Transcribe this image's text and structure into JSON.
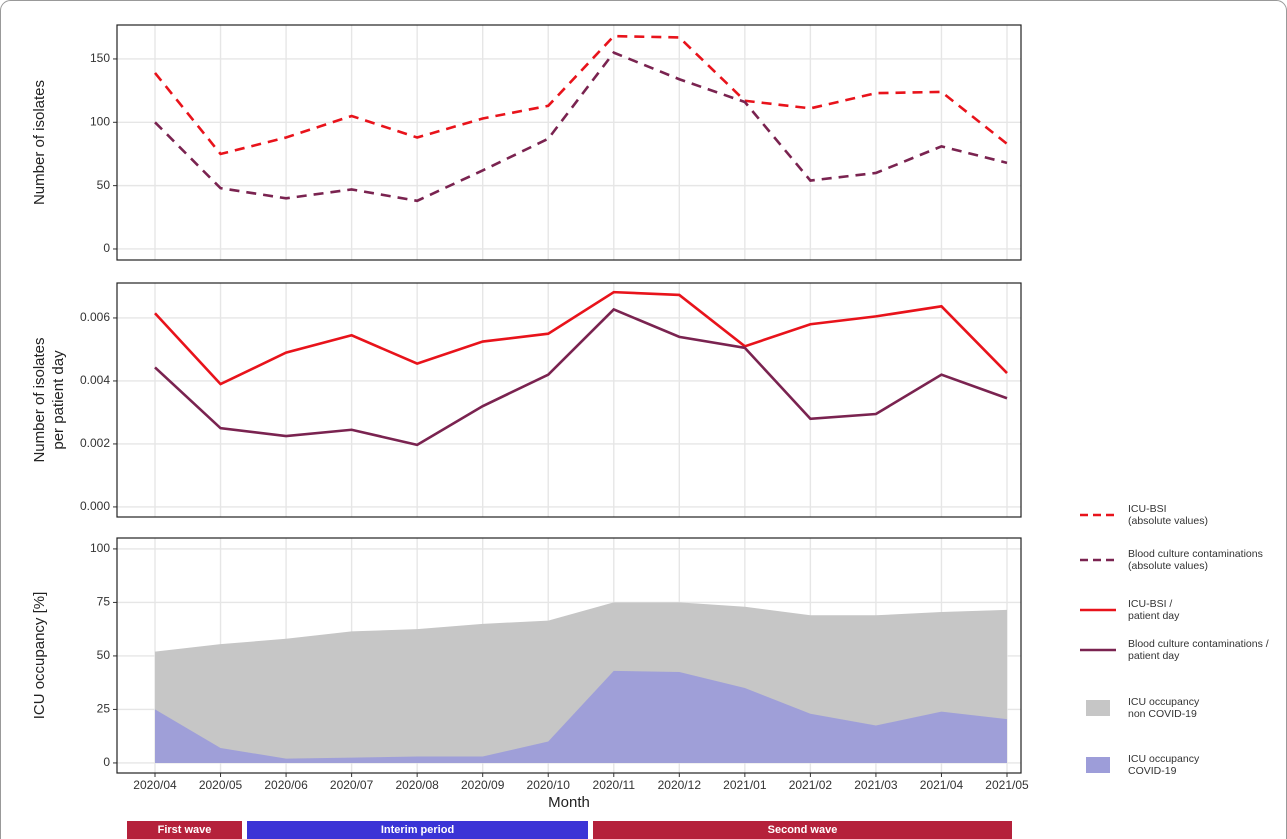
{
  "chart_data": [
    {
      "type": "line",
      "ylabel": "Number of isolates",
      "line_style": "dashed",
      "grid": true,
      "ylim": [
        -8.7,
        176.8
      ],
      "yticks": [
        0,
        50,
        100,
        150
      ],
      "series": [
        {
          "name": [
            "ICU-BSI",
            "(absolute values)"
          ],
          "color": "#e8131b",
          "values": [
            139,
            75,
            88,
            105,
            88,
            103,
            113,
            168,
            167,
            117,
            111,
            123,
            124,
            83
          ]
        },
        {
          "name": [
            "Blood culture contaminations",
            "(absolute values)"
          ],
          "color": "#7a2350",
          "values": [
            100,
            48,
            40,
            47,
            38,
            62,
            87,
            155,
            134,
            116,
            54,
            60,
            81,
            68
          ]
        }
      ]
    },
    {
      "type": "line",
      "ylabel": [
        "Number of isolates",
        "per patient day"
      ],
      "line_style": "solid",
      "grid": true,
      "ylim": [
        -0.00032,
        0.00711
      ],
      "yticks": [
        {
          "value": 0,
          "label": "0.000"
        },
        0.002,
        0.004,
        0.006
      ],
      "series": [
        {
          "name": [
            "ICU-BSI /",
            "patient day"
          ],
          "color": "#e8131b",
          "values": [
            0.00615,
            0.0039,
            0.0049,
            0.00545,
            0.00455,
            0.00525,
            0.0055,
            0.00682,
            0.00673,
            0.0051,
            0.0058,
            0.00605,
            0.00637,
            0.00425
          ]
        },
        {
          "name": [
            "Blood culture contaminations /",
            "patient day"
          ],
          "color": "#7a2350",
          "values": [
            0.00443,
            0.0025,
            0.00225,
            0.00245,
            0.00197,
            0.0032,
            0.0042,
            0.00627,
            0.0054,
            0.00505,
            0.0028,
            0.00295,
            0.0042,
            0.00345
          ]
        }
      ]
    },
    {
      "type": "area",
      "ylabel": "ICU occupancy [%]",
      "xlabel": "Month",
      "grid": true,
      "ylim": [
        -4.7,
        105.1
      ],
      "yticks": [
        0,
        25,
        50,
        75,
        100
      ],
      "categories": [
        "2020/04",
        "2020/05",
        "2020/06",
        "2020/07",
        "2020/08",
        "2020/09",
        "2020/10",
        "2020/11",
        "2020/12",
        "2021/01",
        "2021/02",
        "2021/03",
        "2021/04",
        "2021/05"
      ],
      "series": [
        {
          "name": [
            "ICU occupancy",
            "non COVID-19"
          ],
          "color": "#c6c6c6",
          "values": [
            52,
            55.5,
            58,
            61.5,
            62.5,
            65,
            66.5,
            75,
            75,
            73,
            69,
            69,
            70.5,
            71.5
          ]
        },
        {
          "name": [
            "ICU occupancy",
            "COVID-19"
          ],
          "color": "#9d9dd9",
          "values": [
            25,
            7,
            2,
            2.5,
            3,
            3,
            10,
            43,
            42.5,
            35,
            23,
            17.5,
            24,
            20.5
          ]
        }
      ]
    }
  ],
  "periods": [
    {
      "label": "First wave",
      "color": "#b5213b"
    },
    {
      "label": "Interim period",
      "color": "#3b34d6"
    },
    {
      "label": "Second wave",
      "color": "#b5213b"
    }
  ]
}
